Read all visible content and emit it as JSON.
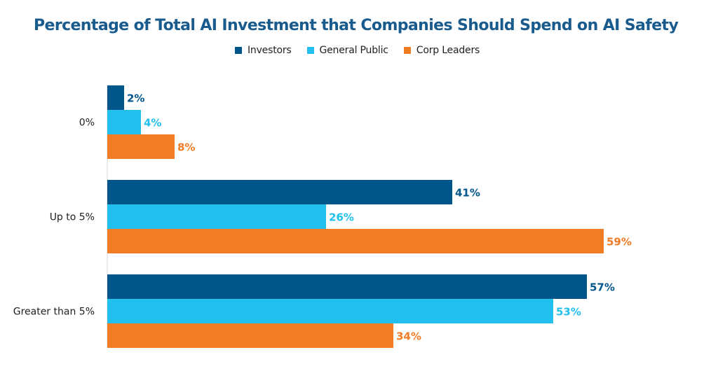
{
  "chart_data": {
    "type": "bar",
    "orientation": "horizontal",
    "title": "Percentage of Total AI Investment that Companies Should Spend on AI Safety",
    "categories": [
      "0%",
      "Up to 5%",
      "Greater than 5%"
    ],
    "series": [
      {
        "name": "Investors",
        "color": "#00558b",
        "values": [
          2,
          41,
          57
        ],
        "labels": [
          "2%",
          "41%",
          "57%"
        ]
      },
      {
        "name": "General Public",
        "color": "#22c0ef",
        "values": [
          4,
          26,
          53
        ],
        "labels": [
          "4%",
          "26%",
          "53%"
        ]
      },
      {
        "name": "Corp Leaders",
        "color": "#f27b25",
        "values": [
          8,
          59,
          34
        ],
        "labels": [
          "8%",
          "59%",
          "34%"
        ]
      }
    ],
    "xlim": [
      0,
      60
    ],
    "grid": false,
    "legend_position": "top-center",
    "xlabel": "",
    "ylabel": ""
  }
}
